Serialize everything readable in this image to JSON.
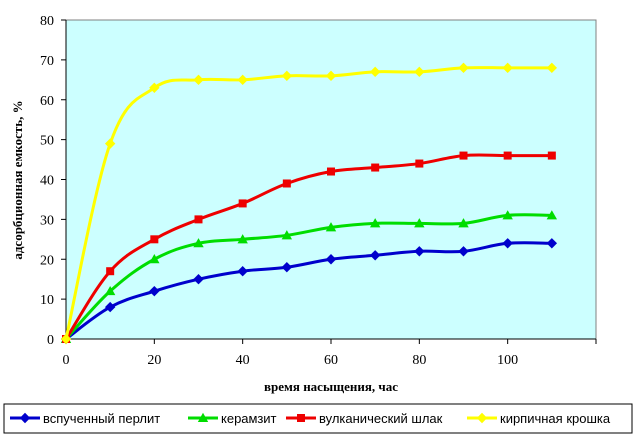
{
  "chart_data": {
    "type": "line",
    "title": "",
    "xlabel": "время насыщения,   час",
    "ylabel": "адсорбционная емкость, %",
    "xlim": [
      0,
      120
    ],
    "ylim": [
      0,
      80
    ],
    "x_ticks": [
      "0",
      "20",
      "40",
      "60",
      "80",
      "100"
    ],
    "y_ticks": [
      "0",
      "10",
      "20",
      "30",
      "40",
      "50",
      "60",
      "70",
      "80"
    ],
    "grid": false,
    "legend_position": "bottom",
    "plot_background": "#ccffff",
    "x": [
      0,
      10,
      20,
      30,
      40,
      50,
      60,
      70,
      80,
      90,
      100,
      110
    ],
    "series": [
      {
        "name": "вспученный перлит",
        "color": "#0000cc",
        "marker": "diamond",
        "values": [
          0,
          8,
          12,
          15,
          17,
          18,
          20,
          21,
          22,
          22,
          24,
          24
        ]
      },
      {
        "name": "керамзит",
        "color": "#00dd00",
        "marker": "triangle",
        "values": [
          0,
          12,
          20,
          24,
          25,
          26,
          28,
          29,
          29,
          29,
          31,
          31
        ]
      },
      {
        "name": "вулканический шлак",
        "color": "#ee0000",
        "marker": "square",
        "values": [
          0,
          17,
          25,
          30,
          34,
          39,
          42,
          43,
          44,
          46,
          46,
          46
        ]
      },
      {
        "name": "кирпичная крошка",
        "color": "#ffff00",
        "marker": "diamond",
        "values": [
          0,
          49,
          63,
          65,
          65,
          66,
          66,
          67,
          67,
          68,
          68,
          68
        ]
      }
    ]
  }
}
